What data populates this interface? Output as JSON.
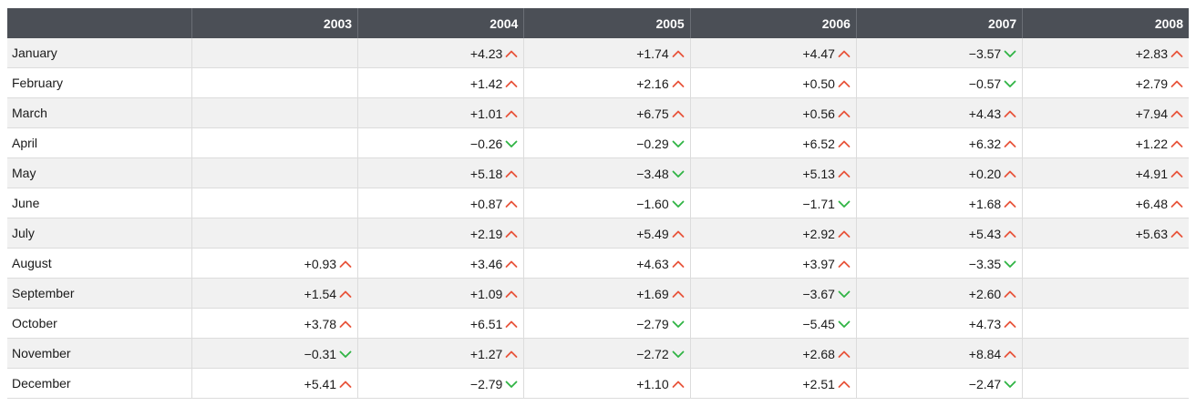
{
  "colors": {
    "header_bg": "#4b4f56",
    "up": "#e8533a",
    "down": "#2fb344",
    "row_alt": "#f1f1f1"
  },
  "table": {
    "corner": "",
    "years": [
      "2003",
      "2004",
      "2005",
      "2006",
      "2007",
      "2008"
    ],
    "rows": [
      {
        "month": "January",
        "cells": [
          null,
          "+4.23",
          "+1.74",
          "+4.47",
          "-3.57",
          "+2.83"
        ]
      },
      {
        "month": "February",
        "cells": [
          null,
          "+1.42",
          "+2.16",
          "+0.50",
          "-0.57",
          "+2.79"
        ]
      },
      {
        "month": "March",
        "cells": [
          null,
          "+1.01",
          "+6.75",
          "+0.56",
          "+4.43",
          "+7.94"
        ]
      },
      {
        "month": "April",
        "cells": [
          null,
          "-0.26",
          "-0.29",
          "+6.52",
          "+6.32",
          "+1.22"
        ]
      },
      {
        "month": "May",
        "cells": [
          null,
          "+5.18",
          "-3.48",
          "+5.13",
          "+0.20",
          "+4.91"
        ]
      },
      {
        "month": "June",
        "cells": [
          null,
          "+0.87",
          "-1.60",
          "-1.71",
          "+1.68",
          "+6.48"
        ]
      },
      {
        "month": "July",
        "cells": [
          null,
          "+2.19",
          "+5.49",
          "+2.92",
          "+5.43",
          "+5.63"
        ]
      },
      {
        "month": "August",
        "cells": [
          "+0.93",
          "+3.46",
          "+4.63",
          "+3.97",
          "-3.35",
          null
        ]
      },
      {
        "month": "September",
        "cells": [
          "+1.54",
          "+1.09",
          "+1.69",
          "-3.67",
          "+2.60",
          null
        ]
      },
      {
        "month": "October",
        "cells": [
          "+3.78",
          "+6.51",
          "-2.79",
          "-5.45",
          "+4.73",
          null
        ]
      },
      {
        "month": "November",
        "cells": [
          "-0.31",
          "+1.27",
          "-2.72",
          "+2.68",
          "+8.84",
          null
        ]
      },
      {
        "month": "December",
        "cells": [
          "+5.41",
          "-2.79",
          "+1.10",
          "+2.51",
          "-2.47",
          null
        ]
      }
    ]
  }
}
